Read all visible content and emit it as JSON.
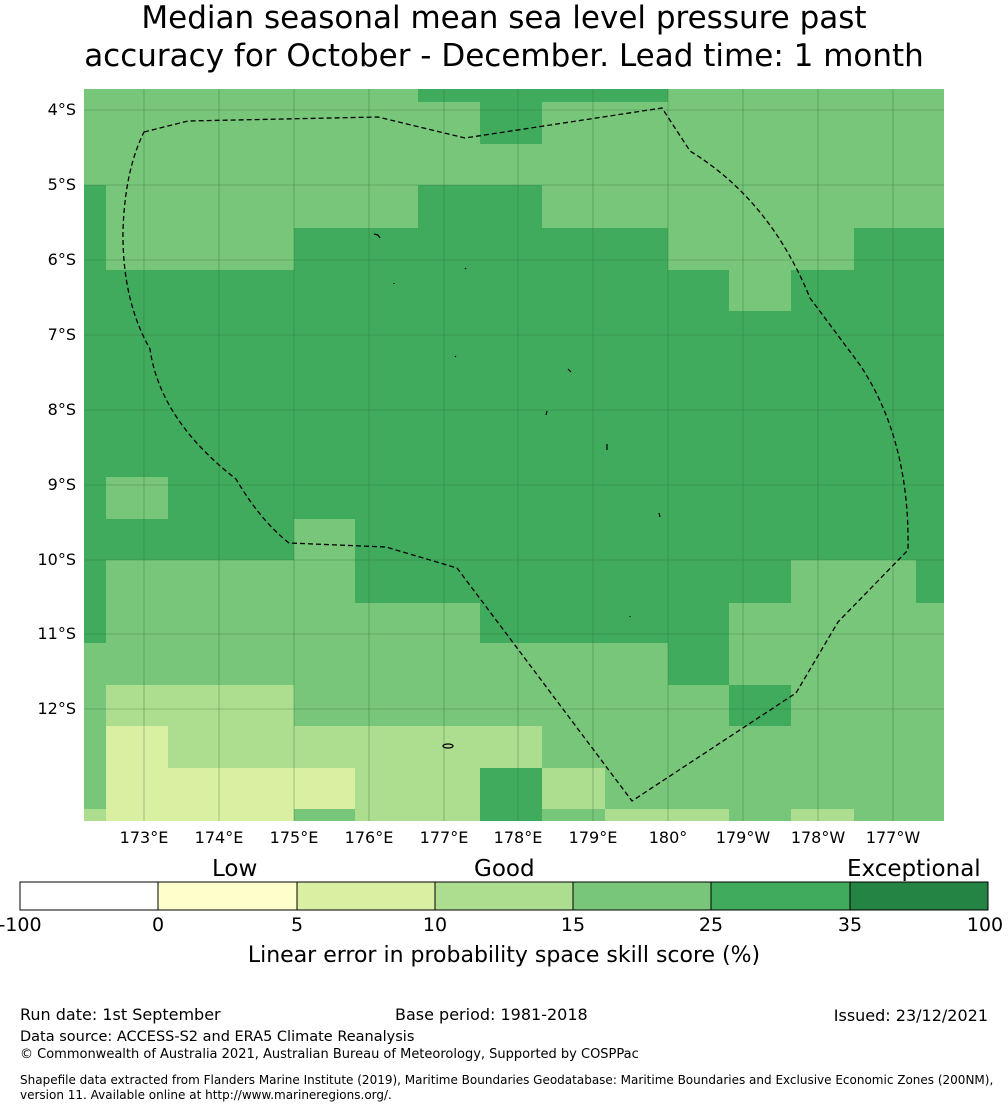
{
  "title": {
    "line1": "Median seasonal mean sea level pressure past",
    "line2": "accuracy for October - December. Lead time: 1 month"
  },
  "map": {
    "lat_labels": [
      "4°S",
      "5°S",
      "6°S",
      "7°S",
      "8°S",
      "9°S",
      "10°S",
      "11°S",
      "12°S"
    ],
    "lon_labels": [
      "173°E",
      "174°E",
      "175°E",
      "176°E",
      "177°E",
      "178°E",
      "179°E",
      "180°",
      "179°W",
      "178°W",
      "177°W"
    ],
    "category_colors": {
      "lt0": "#ffffff",
      "0-5": "#ffffcc",
      "5-10": "#d9f0a3",
      "10-15": "#addd8e",
      "15-25": "#78c679",
      "25-35": "#41ab5d",
      "35-100": "#238443"
    }
  },
  "colorbar": {
    "category_labels": [
      "Low",
      "Good",
      "Exceptional"
    ],
    "ticks": [
      "-100",
      "0",
      "5",
      "10",
      "15",
      "25",
      "35",
      "100"
    ],
    "colors": [
      "#ffffff",
      "#ffffcc",
      "#d9f0a3",
      "#addd8e",
      "#78c679",
      "#41ab5d",
      "#238443"
    ],
    "title": "Linear error in probability space skill score (%)"
  },
  "footer": {
    "run_date": "Run date: 1st September",
    "base_period": "Base period: 1981-2018",
    "issued": "Issued: 23/12/2021",
    "data_source": "Data source: ACCESS-S2 and ERA5 Climate Reanalysis",
    "copyright": "© Commonwealth of Australia 2021, Australian Bureau of Meteorology, Supported by COSPPac",
    "shapefile_line1": "Shapefile data extracted from Flanders Marine Institute (2019), Maritime Boundaries Geodatabase: Maritime Boundaries and Exclusive Economic Zones (200NM),",
    "shapefile_line2": "version 11. Available online at http://www.marineregions.org/."
  }
}
